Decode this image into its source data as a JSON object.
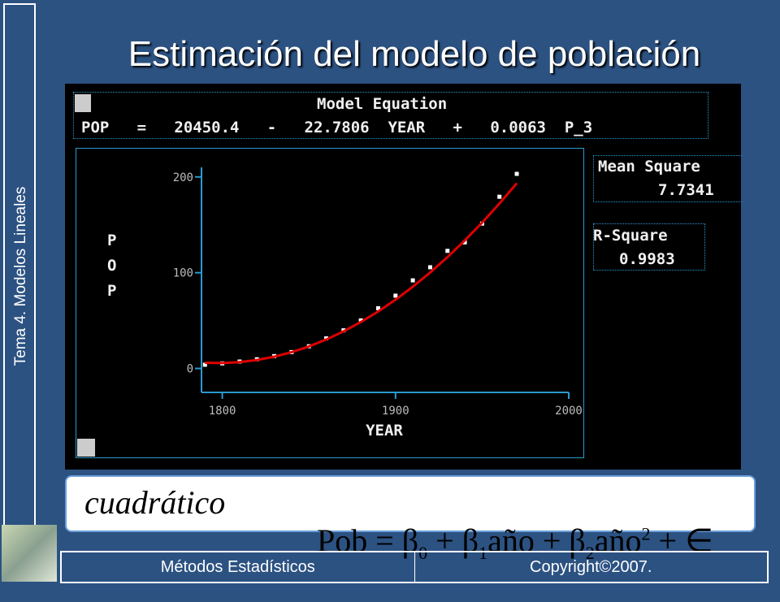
{
  "slide": {
    "side_label": "Tema 4. Modelos Lineales",
    "title": "Estimación del modelo de población",
    "formula_label": "cuadrático",
    "formula": [
      "Pob = β",
      "0",
      " + β",
      "1",
      "año + β",
      "2",
      "año",
      "2",
      " + ∈"
    ]
  },
  "panel": {
    "equation_header": "Model Equation",
    "equation": "POP   =   20450.4   -   22.7806  YEAR   +   0.0063  P_3",
    "mean_square_label": "Mean Square",
    "mean_square": "7.7341",
    "r_square_label": "R-Square",
    "r_square": "0.9983"
  },
  "footer": {
    "left": "Métodos Estadísticos",
    "right": "Copyright©2007."
  },
  "chart_data": {
    "type": "scatter",
    "x_label": "YEAR",
    "y_label": "POP",
    "x": [
      1790,
      1800,
      1810,
      1820,
      1830,
      1840,
      1850,
      1860,
      1870,
      1880,
      1890,
      1900,
      1910,
      1920,
      1930,
      1940,
      1950,
      1960,
      1970
    ],
    "series": [
      {
        "color": "#ffffff",
        "style": "markers",
        "values": [
          3.9,
          5.3,
          7.2,
          9.6,
          12.9,
          17.1,
          23.2,
          31.4,
          39.8,
          50.2,
          62.9,
          76.0,
          92.0,
          105.7,
          122.8,
          131.7,
          151.3,
          179.3,
          203.2
        ]
      },
      {
        "color": "#e00000",
        "style": "line",
        "values": [
          6.0,
          5.7,
          6.6,
          8.8,
          12.3,
          17.0,
          23.0,
          30.2,
          38.7,
          48.5,
          59.5,
          71.8,
          85.4,
          100.2,
          116.3,
          133.7,
          152.3,
          172.2,
          193.4
        ]
      }
    ],
    "xlim": [
      1788,
      2000
    ],
    "xticks": [
      1800,
      1900,
      2000
    ],
    "ylim": [
      -25,
      210
    ],
    "yticks": [
      0,
      100,
      200
    ]
  }
}
